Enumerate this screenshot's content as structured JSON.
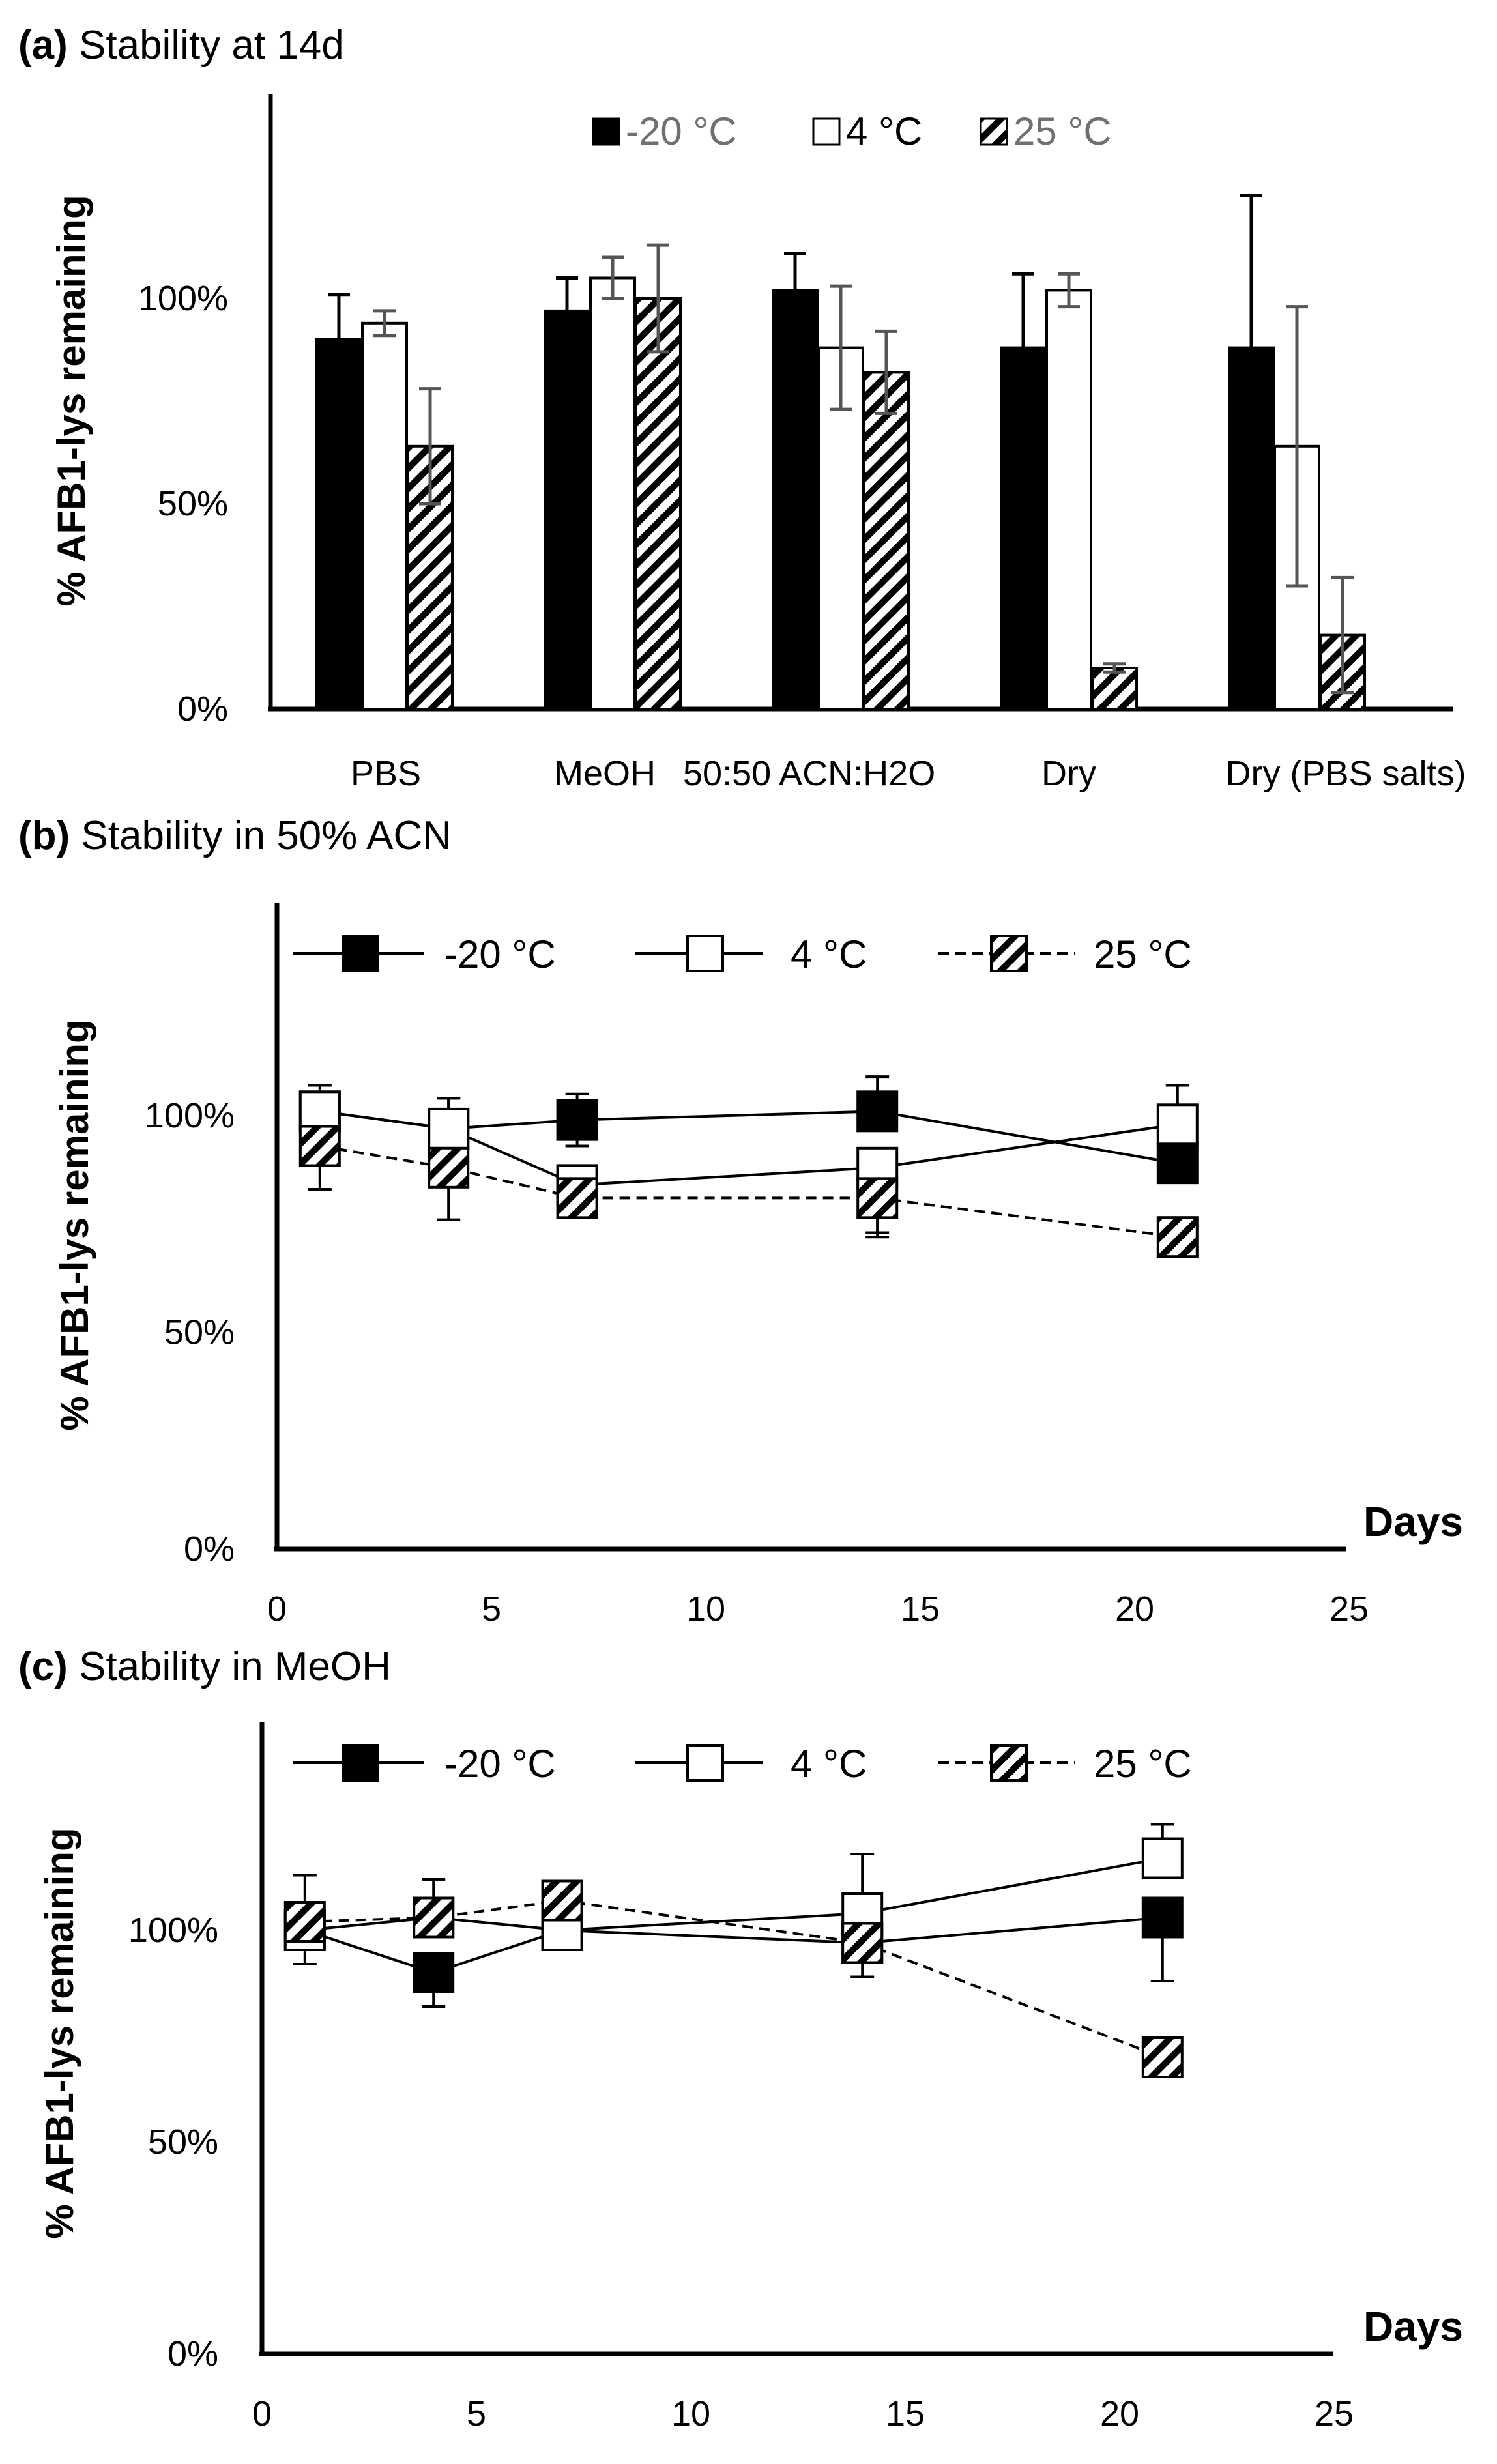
{
  "chart_data": [
    {
      "type": "bar",
      "panel_label": "(a)",
      "title": "Stability at 14d",
      "xlabel": "",
      "ylabel": "% AFB1-lys remaining",
      "ylim": [
        0,
        1.5
      ],
      "yticks": [
        "0%",
        "50%",
        "100%"
      ],
      "categories": [
        "PBS",
        "MeOH",
        "50:50 ACN:H2O",
        "Dry",
        "Dry (PBS salts)"
      ],
      "legend": "top-center",
      "series": [
        {
          "name": "-20  °C",
          "style": "solid-black",
          "values": [
            0.9,
            0.97,
            1.02,
            0.88,
            0.88
          ],
          "errors": [
            0.11,
            0.08,
            0.09,
            0.18,
            0.37
          ]
        },
        {
          "name": "4 °C",
          "style": "white",
          "values": [
            0.94,
            1.05,
            0.88,
            1.02,
            0.64
          ],
          "errors": [
            0.03,
            0.05,
            0.15,
            0.04,
            0.34
          ]
        },
        {
          "name": "25  °C",
          "style": "hatched",
          "values": [
            0.64,
            1.0,
            0.82,
            0.1,
            0.18
          ],
          "errors": [
            0.14,
            0.13,
            0.1,
            0.01,
            0.14
          ]
        }
      ]
    },
    {
      "type": "line",
      "panel_label": "(b)",
      "title": "Stability in 50% ACN",
      "xlabel": "Days",
      "ylabel": "% AFB1-lys remaining",
      "xlim": [
        0,
        25
      ],
      "ylim": [
        0,
        1.5
      ],
      "xticks": [
        "0",
        "5",
        "10",
        "15",
        "20",
        "25"
      ],
      "yticks": [
        "0%",
        "50%",
        "100%"
      ],
      "legend": "top",
      "series": [
        {
          "name": "-20 °C",
          "style": "solid-black",
          "x": [
            1,
            4,
            7,
            14,
            21
          ],
          "y": [
            1.01,
            0.97,
            0.99,
            1.01,
            0.89
          ],
          "err_up": [
            0.06,
            0.07,
            0.06,
            0.08,
            0.0
          ],
          "err_down": [
            0.0,
            0.0,
            0.06,
            0.0,
            0.0
          ]
        },
        {
          "name": "4 °C",
          "style": "white",
          "x": [
            1,
            4,
            7,
            14,
            21
          ],
          "y": [
            1.01,
            0.97,
            0.84,
            0.88,
            0.98
          ],
          "err_up": [
            0.0,
            0.07,
            0.0,
            0.0,
            0.09
          ],
          "err_down": [
            0.0,
            0.0,
            0.0,
            0.15,
            0.0
          ]
        },
        {
          "name": "25 °C",
          "style": "hatched",
          "x": [
            1,
            4,
            7,
            14,
            21
          ],
          "y": [
            0.93,
            0.88,
            0.81,
            0.81,
            0.72
          ],
          "err_up": [
            0.0,
            0.0,
            0.0,
            0.0,
            0.0
          ],
          "err_down": [
            0.1,
            0.12,
            0.0,
            0.09,
            0.0
          ]
        }
      ]
    },
    {
      "type": "line",
      "panel_label": "(c)",
      "title": "Stability in MeOH",
      "xlabel": "Days",
      "ylabel": "% AFB1-lys remaining",
      "xlim": [
        0,
        25
      ],
      "ylim": [
        0,
        1.5
      ],
      "xticks": [
        "0",
        "5",
        "10",
        "15",
        "20",
        "25"
      ],
      "yticks": [
        "0%",
        "50%",
        "100%"
      ],
      "legend": "top",
      "series": [
        {
          "name": "-20 °C",
          "style": "solid-black",
          "x": [
            1,
            4,
            7,
            14,
            21
          ],
          "y": [
            1.0,
            0.9,
            1.0,
            0.97,
            1.03
          ],
          "err_up": [
            0.0,
            0.0,
            0.0,
            0.0,
            0.0
          ],
          "err_down": [
            0.08,
            0.08,
            0.0,
            0.08,
            0.15
          ]
        },
        {
          "name": "4 °C",
          "style": "white",
          "x": [
            1,
            4,
            7,
            14,
            21
          ],
          "y": [
            1.0,
            1.03,
            1.0,
            1.04,
            1.17
          ],
          "err_up": [
            0.0,
            0.0,
            0.0,
            0.14,
            0.08
          ],
          "err_down": [
            0.0,
            0.0,
            0.0,
            0.0,
            0.0
          ]
        },
        {
          "name": "25 °C",
          "style": "hatched",
          "x": [
            1,
            4,
            7,
            14,
            21
          ],
          "y": [
            1.02,
            1.03,
            1.07,
            0.97,
            0.7
          ],
          "err_up": [
            0.11,
            0.09,
            0.0,
            0.06,
            0.0
          ],
          "err_down": [
            0.0,
            0.0,
            0.0,
            0.0,
            0.0
          ]
        }
      ]
    }
  ]
}
